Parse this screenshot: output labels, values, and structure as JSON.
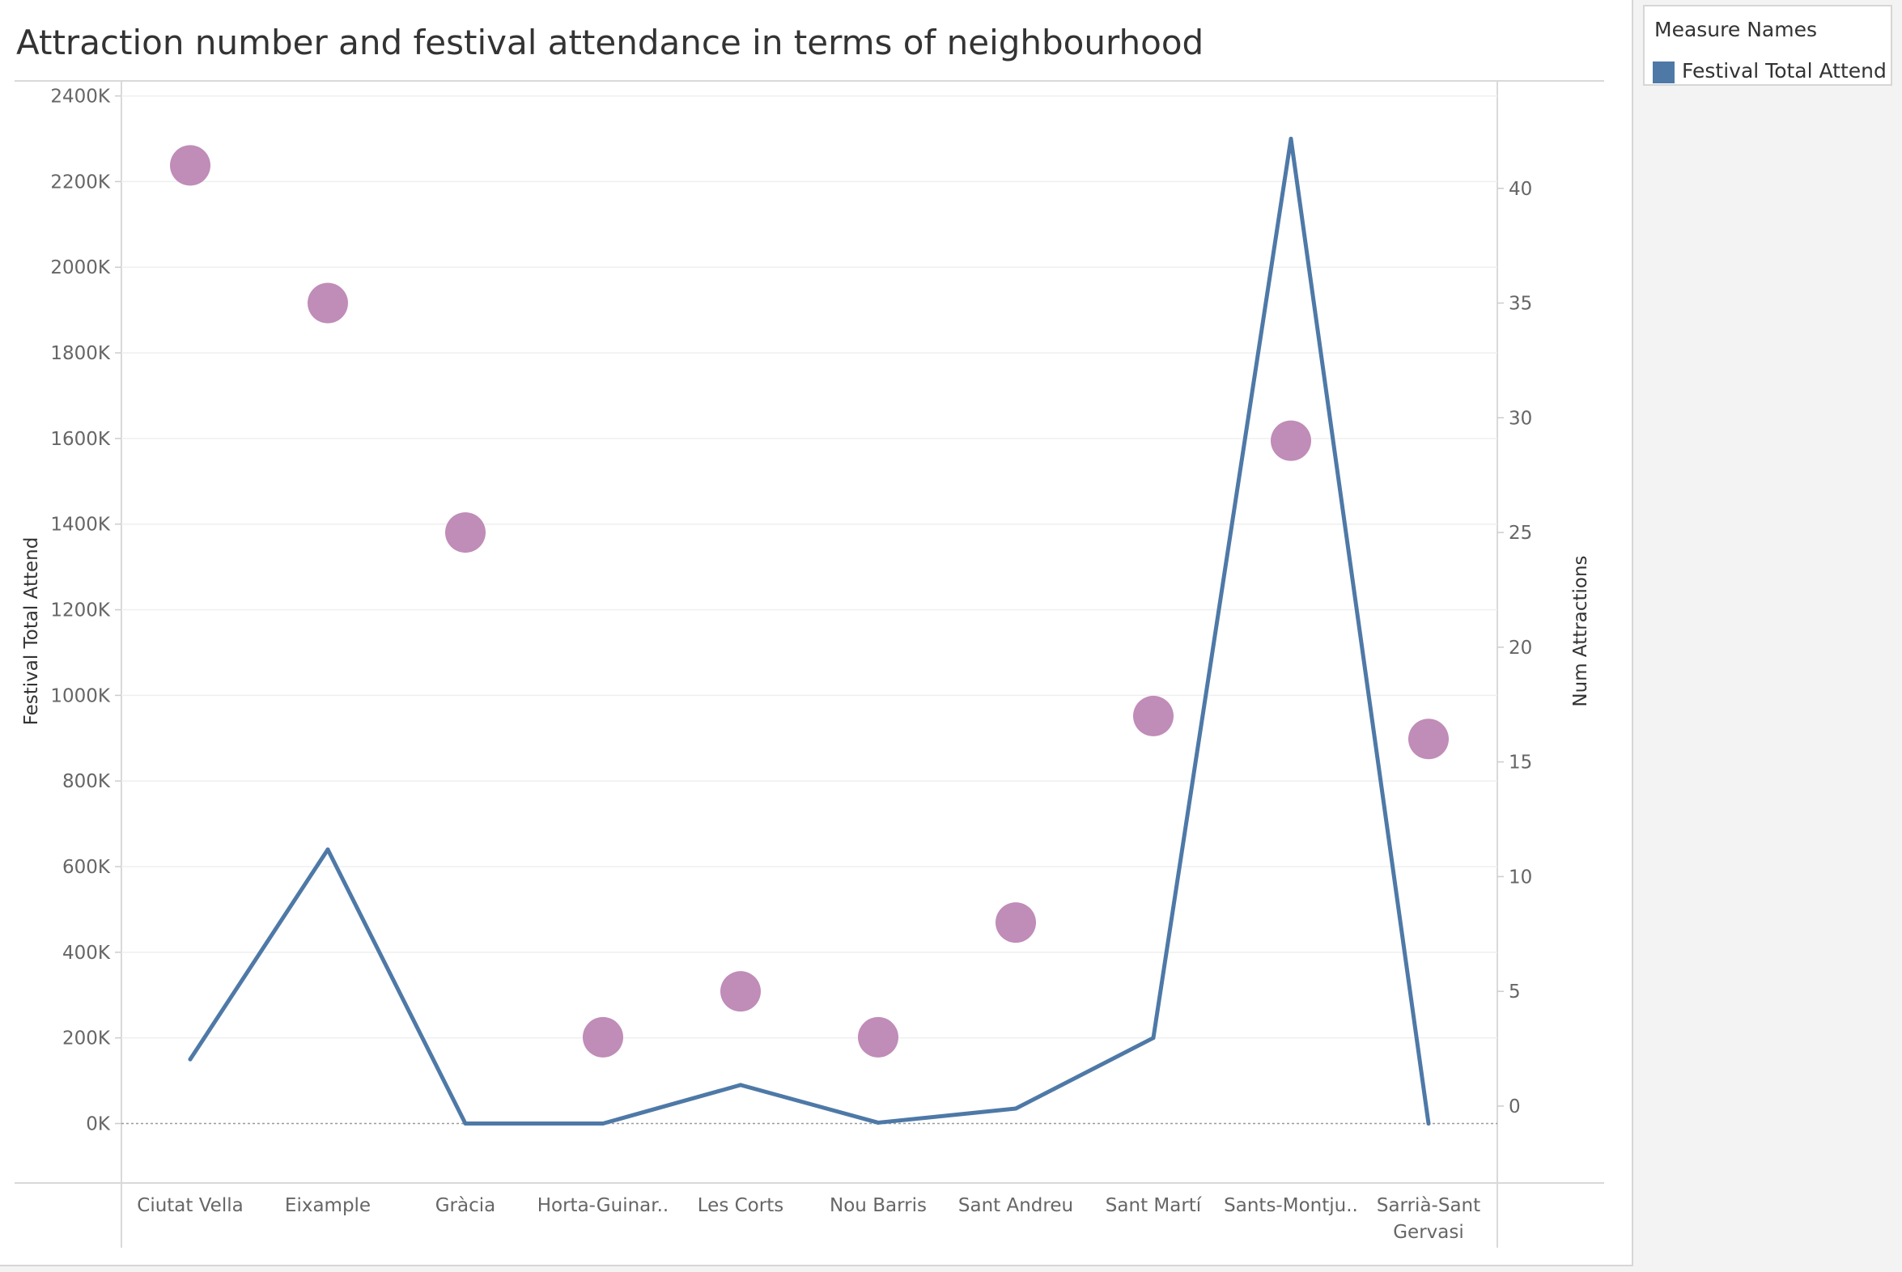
{
  "chart_data": {
    "type": "line",
    "title": "Attraction number and festival attendance in terms of neighbourhood",
    "categories": [
      "Ciutat Vella",
      "Eixample",
      "Gràcia",
      "Horta-Guinar..",
      "Les Corts",
      "Nou Barris",
      "Sant Andreu",
      "Sant Martí",
      "Sants-Montju..",
      "Sarrià-Sant Gervasi"
    ],
    "category_display": [
      [
        "Ciutat Vella"
      ],
      [
        "Eixample"
      ],
      [
        "Gràcia"
      ],
      [
        "Horta-Guinar.."
      ],
      [
        "Les Corts"
      ],
      [
        "Nou Barris"
      ],
      [
        "Sant Andreu"
      ],
      [
        "Sant Martí"
      ],
      [
        "Sants-Montju.."
      ],
      [
        "Sarrià-Sant",
        "Gervasi"
      ]
    ],
    "series": [
      {
        "name": "Festival Total Attend",
        "mark": "line",
        "axis": "left",
        "color": "#4e79a7",
        "values": [
          150000,
          640000,
          0,
          0,
          90000,
          2000,
          35000,
          200000,
          2300000,
          0
        ]
      },
      {
        "name": "Num Attractions",
        "mark": "circle",
        "axis": "right",
        "color": "#c08cb8",
        "values": [
          41,
          35,
          25,
          3,
          5,
          3,
          8,
          17,
          29,
          16
        ]
      }
    ],
    "ylabel": "Festival Total Attend",
    "ylim": [
      -120000,
      2420000
    ],
    "yticks": [
      0,
      200000,
      400000,
      600000,
      800000,
      1000000,
      1200000,
      1400000,
      1600000,
      1800000,
      2000000,
      2200000,
      2400000
    ],
    "ytick_labels": [
      "0K",
      "200K",
      "400K",
      "600K",
      "800K",
      "1000K",
      "1200K",
      "1400K",
      "1600K",
      "1800K",
      "2000K",
      "2200K",
      "2400K"
    ],
    "y2label": "Num Attractions",
    "y2lim": [
      -3.0,
      44.4
    ],
    "y2ticks": [
      0,
      5,
      10,
      15,
      20,
      25,
      30,
      35,
      40
    ],
    "y2tick_labels": [
      "0",
      "5",
      "10",
      "15",
      "20",
      "25",
      "30",
      "35",
      "40"
    ],
    "grid": true,
    "zero_line": true,
    "legend_position": "top-right"
  },
  "legend": {
    "title": "Measure Names",
    "items": [
      {
        "label": "Festival Total Attend",
        "color": "#4e79a7"
      }
    ]
  }
}
